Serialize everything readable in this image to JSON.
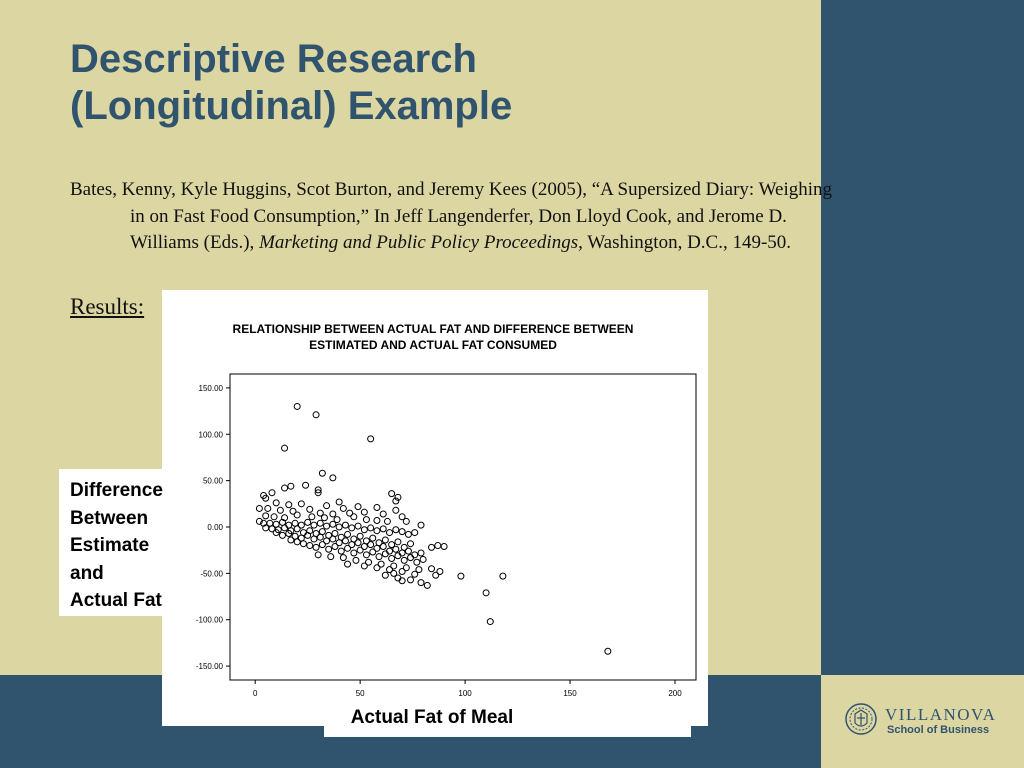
{
  "slide": {
    "title_line1": "Descriptive Research",
    "title_line2": "(Longitudinal) Example",
    "citation": {
      "part1": "Bates, Kenny, Kyle Huggins, Scot Burton, and Jeremy Kees (2005), “A Supersized Diary: Weighing in on Fast Food Consumption,” In Jeff Langenderfer, Don Lloyd Cook, and Jerome D. Williams (Eds.), ",
      "journal": "Marketing and Public Policy Proceedings",
      "part2": ", Washington, D.C., 149-50."
    },
    "results_label": "Results:"
  },
  "logo": {
    "name": "VILLANOVA",
    "subtitle": "School of Business",
    "emblem_icon": "university-seal-icon"
  },
  "colors": {
    "background": "#dcd6a2",
    "band": "#30536e",
    "title": "#30536e"
  },
  "chart_data": {
    "type": "scatter",
    "title": "RELATIONSHIP BETWEEN ACTUAL FAT AND DIFFERENCE BETWEEN ESTIMATED AND ACTUAL FAT CONSUMED",
    "title_line1": "RELATIONSHIP BETWEEN ACTUAL FAT AND DIFFERENCE BETWEEN",
    "title_line2": "ESTIMATED AND ACTUAL FAT CONSUMED",
    "xlabel": "Actual Fat of Meal",
    "ylabel_lines": [
      "Difference",
      "Between",
      "Estimate",
      "and",
      "Actual Fat"
    ],
    "xlim": [
      -12,
      210
    ],
    "ylim": [
      -165,
      165
    ],
    "x_ticks": [
      0,
      50,
      100,
      150,
      200
    ],
    "x_tick_labels": [
      "0",
      "50",
      "100",
      "150",
      "200"
    ],
    "y_ticks": [
      150,
      100,
      50,
      0,
      -50,
      -100,
      -150
    ],
    "y_tick_labels": [
      "150.00",
      "100.00",
      "50.00",
      "0.00",
      "-50.00",
      "-100.00",
      "-150.00"
    ],
    "grid": false,
    "marker": "open-circle",
    "points": [
      [
        20,
        130
      ],
      [
        29,
        121
      ],
      [
        55,
        95
      ],
      [
        14,
        85
      ],
      [
        32,
        58
      ],
      [
        37,
        53
      ],
      [
        24,
        45
      ],
      [
        17,
        44
      ],
      [
        14,
        42
      ],
      [
        30,
        40
      ],
      [
        8,
        37
      ],
      [
        30,
        37
      ],
      [
        65,
        36
      ],
      [
        68,
        32
      ],
      [
        4,
        34
      ],
      [
        5,
        31
      ],
      [
        67,
        28
      ],
      [
        40,
        27
      ],
      [
        10,
        26
      ],
      [
        16,
        24
      ],
      [
        22,
        25
      ],
      [
        34,
        23
      ],
      [
        42,
        20
      ],
      [
        49,
        22
      ],
      [
        58,
        21
      ],
      [
        67,
        18
      ],
      [
        2,
        20
      ],
      [
        6,
        20
      ],
      [
        12,
        18
      ],
      [
        18,
        17
      ],
      [
        26,
        19
      ],
      [
        31,
        15
      ],
      [
        37,
        14
      ],
      [
        45,
        15
      ],
      [
        52,
        16
      ],
      [
        61,
        14
      ],
      [
        70,
        11
      ],
      [
        5,
        12
      ],
      [
        9,
        11
      ],
      [
        14,
        10
      ],
      [
        20,
        13
      ],
      [
        27,
        11
      ],
      [
        33,
        10
      ],
      [
        39,
        8
      ],
      [
        47,
        11
      ],
      [
        53,
        8
      ],
      [
        58,
        7
      ],
      [
        63,
        6
      ],
      [
        72,
        6
      ],
      [
        79,
        2
      ],
      [
        2,
        6
      ],
      [
        4,
        4
      ],
      [
        7,
        4
      ],
      [
        10,
        3
      ],
      [
        13,
        5
      ],
      [
        16,
        2
      ],
      [
        19,
        4
      ],
      [
        22,
        2
      ],
      [
        25,
        5
      ],
      [
        28,
        2
      ],
      [
        31,
        4
      ],
      [
        34,
        1
      ],
      [
        37,
        3
      ],
      [
        40,
        0
      ],
      [
        43,
        2
      ],
      [
        46,
        -1
      ],
      [
        49,
        1
      ],
      [
        52,
        -3
      ],
      [
        55,
        -1
      ],
      [
        58,
        -4
      ],
      [
        61,
        -2
      ],
      [
        64,
        -6
      ],
      [
        67,
        -3
      ],
      [
        70,
        -5
      ],
      [
        73,
        -8
      ],
      [
        76,
        -6
      ],
      [
        5,
        -1
      ],
      [
        8,
        -2
      ],
      [
        11,
        -3
      ],
      [
        14,
        -1
      ],
      [
        17,
        -4
      ],
      [
        20,
        -2
      ],
      [
        23,
        -6
      ],
      [
        26,
        -4
      ],
      [
        29,
        -7
      ],
      [
        32,
        -5
      ],
      [
        35,
        -9
      ],
      [
        38,
        -7
      ],
      [
        41,
        -11
      ],
      [
        44,
        -8
      ],
      [
        47,
        -13
      ],
      [
        50,
        -10
      ],
      [
        53,
        -15
      ],
      [
        56,
        -12
      ],
      [
        59,
        -17
      ],
      [
        62,
        -14
      ],
      [
        65,
        -19
      ],
      [
        68,
        -16
      ],
      [
        71,
        -22
      ],
      [
        74,
        -18
      ],
      [
        10,
        -6
      ],
      [
        13,
        -9
      ],
      [
        16,
        -7
      ],
      [
        19,
        -10
      ],
      [
        22,
        -12
      ],
      [
        25,
        -9
      ],
      [
        28,
        -13
      ],
      [
        31,
        -11
      ],
      [
        34,
        -15
      ],
      [
        37,
        -13
      ],
      [
        40,
        -17
      ],
      [
        43,
        -15
      ],
      [
        46,
        -19
      ],
      [
        49,
        -17
      ],
      [
        52,
        -21
      ],
      [
        55,
        -19
      ],
      [
        58,
        -23
      ],
      [
        61,
        -21
      ],
      [
        64,
        -26
      ],
      [
        67,
        -24
      ],
      [
        70,
        -28
      ],
      [
        73,
        -26
      ],
      [
        76,
        -30
      ],
      [
        79,
        -28
      ],
      [
        17,
        -14
      ],
      [
        20,
        -16
      ],
      [
        23,
        -18
      ],
      [
        26,
        -20
      ],
      [
        29,
        -22
      ],
      [
        32,
        -19
      ],
      [
        35,
        -24
      ],
      [
        38,
        -21
      ],
      [
        41,
        -26
      ],
      [
        44,
        -23
      ],
      [
        47,
        -28
      ],
      [
        50,
        -25
      ],
      [
        53,
        -30
      ],
      [
        56,
        -27
      ],
      [
        59,
        -32
      ],
      [
        62,
        -29
      ],
      [
        65,
        -34
      ],
      [
        68,
        -31
      ],
      [
        71,
        -36
      ],
      [
        74,
        -33
      ],
      [
        77,
        -38
      ],
      [
        80,
        -35
      ],
      [
        30,
        -30
      ],
      [
        36,
        -32
      ],
      [
        42,
        -33
      ],
      [
        48,
        -36
      ],
      [
        54,
        -38
      ],
      [
        60,
        -40
      ],
      [
        66,
        -42
      ],
      [
        72,
        -44
      ],
      [
        78,
        -46
      ],
      [
        84,
        -45
      ],
      [
        44,
        -40
      ],
      [
        52,
        -42
      ],
      [
        58,
        -44
      ],
      [
        64,
        -46
      ],
      [
        70,
        -48
      ],
      [
        76,
        -51
      ],
      [
        62,
        -52
      ],
      [
        68,
        -55
      ],
      [
        74,
        -57
      ],
      [
        79,
        -60
      ],
      [
        82,
        -63
      ],
      [
        70,
        -58
      ],
      [
        66,
        -50
      ],
      [
        86,
        -52
      ],
      [
        88,
        -48
      ],
      [
        87,
        -20
      ],
      [
        90,
        -21
      ],
      [
        84,
        -22
      ],
      [
        98,
        -53
      ],
      [
        110,
        -71
      ],
      [
        118,
        -53
      ],
      [
        112,
        -102
      ],
      [
        168,
        -134
      ]
    ]
  }
}
